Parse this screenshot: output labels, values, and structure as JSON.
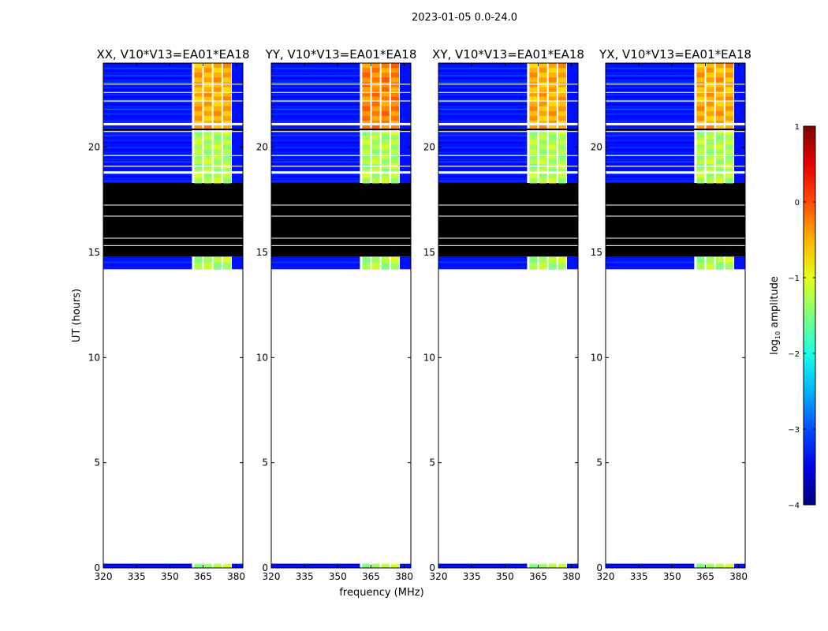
{
  "suptitle": "2023-01-05 0.0-24.0",
  "chart_data": {
    "type": "heatmap",
    "title": "2023-01-05 0.0-24.0",
    "xlabel": "frequency (MHz)",
    "ylabel": "UT (hours)",
    "xlim": [
      320,
      383
    ],
    "ylim": [
      0,
      24
    ],
    "xticks": [
      320,
      335,
      350,
      365,
      380
    ],
    "yticks": [
      0,
      5,
      10,
      15,
      20
    ],
    "panels": [
      {
        "title": "XX, V10*V13=EA01*EA18",
        "pol": "XX"
      },
      {
        "title": "YY, V10*V13=EA01*EA18",
        "pol": "YY"
      },
      {
        "title": "XY, V10*V13=EA01*EA18",
        "pol": "XY"
      },
      {
        "title": "YX, V10*V13=EA01*EA18",
        "pol": "YX"
      }
    ],
    "data_blocks": [
      {
        "start": 0.0,
        "end": 0.2,
        "status": "data"
      },
      {
        "start": 14.2,
        "end": 14.8,
        "status": "data"
      },
      {
        "start": 14.8,
        "end": 18.3,
        "status": "flagged"
      },
      {
        "start": 18.3,
        "end": 24.0,
        "status": "data"
      }
    ],
    "band_low": {
      "freq_start": 320,
      "freq_end": 360,
      "log10_amplitude": -3.3
    },
    "band_high": {
      "freq_start": 360,
      "freq_end": 378,
      "log10_amplitude": -1.0
    },
    "colorbar": {
      "label": "log10 amplitude",
      "label_prefix": "log",
      "label_sub": "10",
      "label_suffix": " amplitude",
      "min": -4,
      "max": 1,
      "ticks": [
        "1",
        "0",
        "−1",
        "−2",
        "−3",
        "−4"
      ],
      "colormap": "jet"
    }
  }
}
